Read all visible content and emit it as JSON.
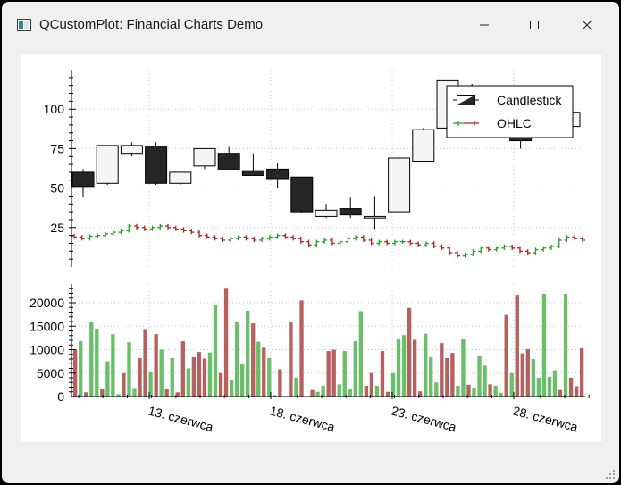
{
  "window": {
    "title": "QCustomPlot: Financial Charts Demo",
    "icons": [
      "app-icon",
      "minimize-icon",
      "maximize-icon",
      "close-icon"
    ]
  },
  "colors": {
    "candle_up": "#f5f5f5",
    "candle_down": "#262626",
    "ohlc_up": "#239d23",
    "ohlc_down": "#b41e1e",
    "volume_up": "#6abf6a",
    "volume_down": "#b76060",
    "grid": "#c8c8c8"
  },
  "chart_data": [
    {
      "type": "candlestick",
      "series": [
        {
          "name": "Candlestick",
          "ohlc": [
            [
              60,
              62,
              44,
              51
            ],
            [
              53,
              77,
              52,
              77
            ],
            [
              72,
              79,
              70,
              77
            ],
            [
              76,
              79,
              52,
              53
            ],
            [
              53,
              60,
              52,
              60
            ],
            [
              64,
              75,
              62,
              75
            ],
            [
              72,
              76,
              62,
              62
            ],
            [
              61,
              72,
              58,
              58
            ],
            [
              62,
              66,
              50,
              56
            ],
            [
              57,
              57,
              34,
              35
            ],
            [
              32,
              40,
              31,
              36
            ],
            [
              37,
              44,
              31,
              33
            ],
            [
              31,
              45,
              24,
              32
            ],
            [
              35,
              70,
              35,
              69
            ],
            [
              67,
              88,
              67,
              87
            ],
            [
              88,
              118,
              88,
              118
            ],
            [
              97,
              116,
              85,
              88
            ],
            [
              92,
              98,
              82,
              86
            ],
            [
              88,
              92,
              75,
              80
            ],
            [
              90,
              100,
              86,
              89
            ],
            [
              89,
              100,
              89,
              98
            ]
          ]
        },
        {
          "name": "OHLC",
          "close": [
            19,
            18,
            19.5,
            20,
            21,
            22,
            23,
            26,
            25,
            24,
            25,
            26,
            25,
            24,
            23,
            22,
            20,
            19,
            18,
            17,
            18,
            19,
            18,
            17,
            18,
            19,
            20,
            19,
            18,
            16,
            14,
            16,
            17,
            15,
            16,
            18,
            19,
            17,
            15,
            16,
            15,
            16,
            16,
            15,
            14,
            15,
            13,
            12,
            9,
            7,
            8,
            10,
            12,
            11,
            12,
            13,
            12,
            10,
            9,
            11,
            12,
            13,
            17,
            19,
            18,
            17
          ]
        }
      ],
      "yticks": [
        "25",
        "50",
        "75",
        "100"
      ],
      "ylim": [
        0,
        125
      ],
      "legend": [
        "Candlestick",
        "OHLC"
      ],
      "legend_position": "top-right",
      "grid": true
    },
    {
      "type": "bar",
      "series": [
        {
          "name": "Volume",
          "values": [
            10000,
            11800,
            900,
            16000,
            14500,
            1700,
            7500,
            13300,
            500,
            5000,
            11600,
            1800,
            8200,
            14400,
            5200,
            13300,
            10000,
            1600,
            8200,
            900,
            11800,
            6000,
            8400,
            9500,
            8100,
            9400,
            19400,
            5000,
            23000,
            3500,
            16000,
            6900,
            18300,
            15600,
            11700,
            10400,
            8200,
            300,
            5800,
            100,
            16000,
            4000,
            20500,
            100,
            1400,
            1000,
            2300,
            9700,
            10000,
            2600,
            9700,
            1500,
            11800,
            18200,
            2300,
            5000,
            2300,
            9700,
            1000,
            5000,
            12200,
            13100,
            18900,
            12100,
            1100,
            13400,
            8400,
            3000,
            11400,
            8200,
            9300,
            2300,
            12200,
            2500,
            1900,
            8600,
            6600,
            2600,
            2300,
            800,
            17400,
            5000,
            21700,
            9200,
            10100,
            8000,
            4000,
            21900,
            4200,
            5600,
            1400,
            21900,
            4000,
            2200,
            10300
          ]
        }
      ],
      "yticks": [
        "0",
        "5000",
        "10000",
        "15000",
        "20000"
      ],
      "ylim": [
        0,
        24000
      ],
      "xticks": [
        "13. czerwca",
        "18. czerwca",
        "23. czerwca",
        "28. czerwca"
      ],
      "grid": true
    }
  ]
}
